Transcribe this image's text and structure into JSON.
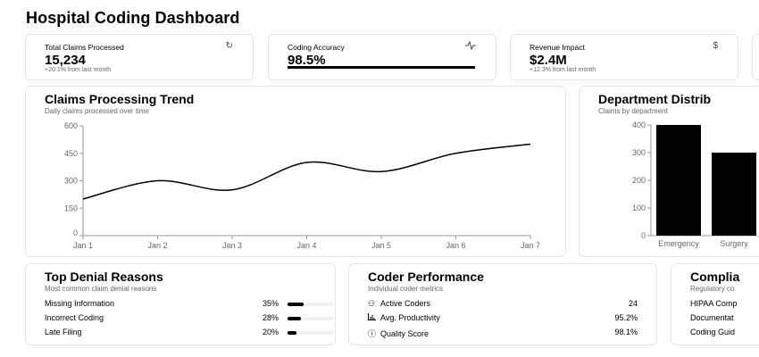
{
  "header": {
    "title": "Hospital Coding Dashboard"
  },
  "stats": [
    {
      "label": "Total Claims Processed",
      "value": "15,234",
      "sub": "+20.1% from last month",
      "icon": "file-refresh-icon"
    },
    {
      "label": "Coding Accuracy",
      "value": "98.5%",
      "progress_percent": 98.5,
      "icon": "activity-icon"
    },
    {
      "label": "Revenue Impact",
      "value": "$2.4M",
      "sub": "+12.3% from last month",
      "icon": "dollar-icon",
      "icon_glyph": "$"
    }
  ],
  "chart_data": [
    {
      "type": "line",
      "title": "Claims Processing Trend",
      "subtitle": "Daily claims processed over time",
      "x": [
        "Jan 1",
        "Jan 2",
        "Jan 3",
        "Jan 4",
        "Jan 5",
        "Jan 6",
        "Jan 7"
      ],
      "values": [
        200,
        300,
        250,
        400,
        350,
        450,
        500
      ],
      "ylim": [
        0,
        600
      ],
      "yticks": [
        "0",
        "150",
        "300",
        "450",
        "600"
      ],
      "grid": false,
      "color": "#000000"
    },
    {
      "type": "bar",
      "title": "Department Distrib",
      "subtitle": "Claims by department",
      "categories": [
        "Emergency",
        "Surgery"
      ],
      "values": [
        400,
        300
      ],
      "ylim": [
        0,
        400
      ],
      "yticks": [
        "0",
        "100",
        "200",
        "300",
        "400"
      ],
      "grid": false,
      "color": "#000000"
    }
  ],
  "denials": {
    "title": "Top Denial Reasons",
    "subtitle": "Most common claim denial reasons",
    "items": [
      {
        "label": "Missing Information",
        "pct": "35%",
        "value": 35
      },
      {
        "label": "Incorrect Coding",
        "pct": "28%",
        "value": 28
      },
      {
        "label": "Late Filing",
        "pct": "20%",
        "value": 20
      }
    ]
  },
  "coders": {
    "title": "Coder Performance",
    "subtitle": "Individual coder metrics",
    "items": [
      {
        "label": "Active Coders",
        "value": "24",
        "icon": "users-icon",
        "glyph": "὆5"
      },
      {
        "label": "Avg. Productivity",
        "value": "95.2%",
        "icon": "bar-chart-icon"
      },
      {
        "label": "Quality Score",
        "value": "98.1%",
        "icon": "alert-circle-icon"
      }
    ]
  },
  "compliance": {
    "title": "Complia",
    "subtitle": "Regulatory co",
    "items": [
      {
        "label": "HIPAA Comp"
      },
      {
        "label": "Documentat"
      },
      {
        "label": "Coding Guid"
      }
    ]
  }
}
